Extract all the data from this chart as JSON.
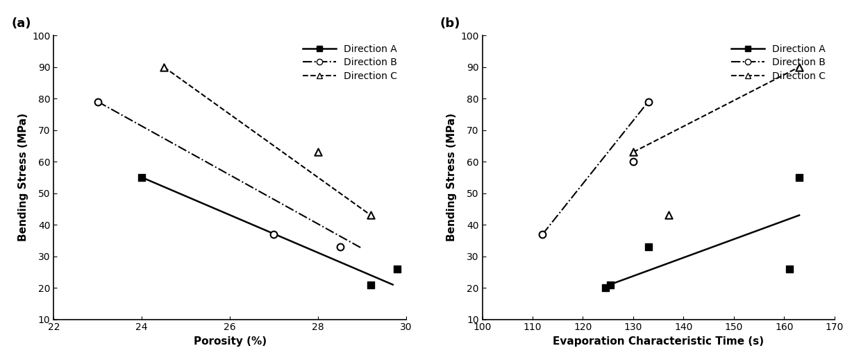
{
  "plot_a": {
    "title": "(a)",
    "xlabel": "Porosity (%)",
    "ylabel": "Bending Stress (MPa)",
    "xlim": [
      22,
      30
    ],
    "ylim": [
      10,
      100
    ],
    "xticks": [
      22,
      24,
      26,
      28,
      30
    ],
    "yticks": [
      10,
      20,
      30,
      40,
      50,
      60,
      70,
      80,
      90,
      100
    ],
    "dir_A": {
      "line_x": [
        24.0,
        29.7
      ],
      "line_y": [
        55.0,
        21.0
      ],
      "scatter_x": [
        24.0,
        29.2,
        29.8
      ],
      "scatter_y": [
        55.0,
        21.0,
        26.0
      ]
    },
    "dir_B": {
      "line_x": [
        23.0,
        29.0
      ],
      "line_y": [
        79.0,
        32.5
      ],
      "scatter_x": [
        23.0,
        27.0,
        28.5
      ],
      "scatter_y": [
        79.0,
        37.0,
        33.0
      ]
    },
    "dir_C": {
      "line_x": [
        24.5,
        29.2
      ],
      "line_y": [
        90.0,
        43.0
      ],
      "scatter_x": [
        24.5,
        28.0,
        29.2
      ],
      "scatter_y": [
        90.0,
        63.0,
        43.0
      ]
    }
  },
  "plot_b": {
    "title": "(b)",
    "xlabel": "Evaporation Characteristic Time (s)",
    "ylabel": "Bending Stress (MPa)",
    "xlim": [
      100,
      170
    ],
    "ylim": [
      10,
      100
    ],
    "xticks": [
      100,
      110,
      120,
      130,
      140,
      150,
      160,
      170
    ],
    "yticks": [
      10,
      20,
      30,
      40,
      50,
      60,
      70,
      80,
      90,
      100
    ],
    "dir_A": {
      "line_x": [
        124.5,
        163.0
      ],
      "line_y": [
        20.5,
        43.0
      ],
      "scatter_x": [
        124.5,
        125.5,
        133.0,
        161.0,
        163.0
      ],
      "scatter_y": [
        20.0,
        21.0,
        33.0,
        26.0,
        55.0
      ]
    },
    "dir_B": {
      "line_x": [
        112.0,
        133.0
      ],
      "line_y": [
        37.0,
        79.0
      ],
      "scatter_x": [
        112.0,
        130.0,
        133.0
      ],
      "scatter_y": [
        37.0,
        60.0,
        79.0
      ]
    },
    "dir_C": {
      "line_x": [
        130.0,
        163.0
      ],
      "line_y": [
        63.0,
        90.0
      ],
      "scatter_x": [
        130.0,
        137.0,
        163.0
      ],
      "scatter_y": [
        63.0,
        43.0,
        90.0
      ]
    }
  },
  "legend_labels": [
    "Direction A",
    "Direction B",
    "Direction C"
  ],
  "background_color": "white"
}
